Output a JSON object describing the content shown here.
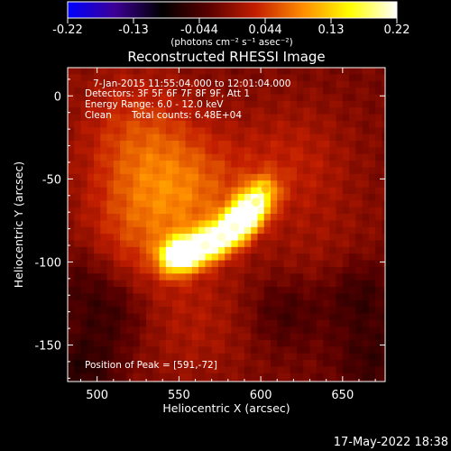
{
  "colors": {
    "background": "#000000",
    "foreground": "#ffffff",
    "colormap": [
      "#0000ff",
      "#3c0096",
      "#000000",
      "#5a0000",
      "#c31e00",
      "#ff8c00",
      "#ffff00",
      "#ffffff"
    ]
  },
  "colorbar": {
    "range": [
      -0.22,
      0.22
    ],
    "tick_labels": [
      "-0.22",
      "-0.13",
      "-0.044",
      "0.044",
      "0.13",
      "0.22"
    ],
    "units": "(photons cm⁻² s⁻¹ asec⁻²)"
  },
  "info": {
    "time_range": "7-Jan-2015 11:55:04.000 to 12:01:04.000",
    "detectors": "Detectors: 3F 5F 6F 7F 8F 9F, Att 1",
    "energy_range": "Energy Range: 6.0 - 12.0 keV",
    "algorithm": "Clean",
    "total_counts": "Total counts: 6.48E+04",
    "peak": "Position of Peak = [591,-72]"
  },
  "date_stamp": "17-May-2022 18:38",
  "chart_data": {
    "type": "heatmap",
    "title": "Reconstructed RHESSI Image",
    "xlabel": "Heliocentric X (arcsec)",
    "ylabel": "Heliocentric Y (arcsec)",
    "xlim": [
      482,
      676
    ],
    "ylim": [
      -172,
      17
    ],
    "x_ticks": [
      500,
      550,
      600,
      650
    ],
    "y_ticks": [
      0,
      -50,
      -100,
      -150
    ],
    "x_tick_labels": [
      "500",
      "550",
      "600",
      "650"
    ],
    "y_tick_labels": [
      "0",
      "-50",
      "-100",
      "-150"
    ],
    "colorbar_range": [
      -0.22,
      0.22
    ],
    "peak_position": [
      591,
      -72
    ],
    "peak_value": 0.22,
    "source_ridge": [
      {
        "x": 547,
        "y": -97,
        "value": 0.2
      },
      {
        "x": 556,
        "y": -94,
        "value": 0.2
      },
      {
        "x": 566,
        "y": -90,
        "value": 0.18
      },
      {
        "x": 576,
        "y": -85,
        "value": 0.18
      },
      {
        "x": 584,
        "y": -79,
        "value": 0.18
      },
      {
        "x": 591,
        "y": -72,
        "value": 0.22
      },
      {
        "x": 597,
        "y": -64,
        "value": 0.15
      },
      {
        "x": 603,
        "y": -56,
        "value": 0.08
      }
    ],
    "diffuse_emission": [
      {
        "x": 560,
        "y": -60,
        "value": 0.06
      },
      {
        "x": 530,
        "y": -40,
        "value": 0.05
      },
      {
        "x": 620,
        "y": -40,
        "value": 0.04
      },
      {
        "x": 525,
        "y": -85,
        "value": 0.05
      },
      {
        "x": 560,
        "y": -140,
        "value": 0.03
      },
      {
        "x": 520,
        "y": -10,
        "value": 0.03
      },
      {
        "x": 640,
        "y": -100,
        "value": 0.02
      }
    ],
    "negative_regions": [
      {
        "x": 490,
        "y": -165,
        "value": -0.05
      },
      {
        "x": 615,
        "y": -130,
        "value": -0.04
      },
      {
        "x": 660,
        "y": -120,
        "value": -0.05
      },
      {
        "x": 510,
        "y": -130,
        "value": -0.04
      },
      {
        "x": 668,
        "y": -160,
        "value": -0.04
      },
      {
        "x": 490,
        "y": -110,
        "value": -0.03
      }
    ]
  }
}
